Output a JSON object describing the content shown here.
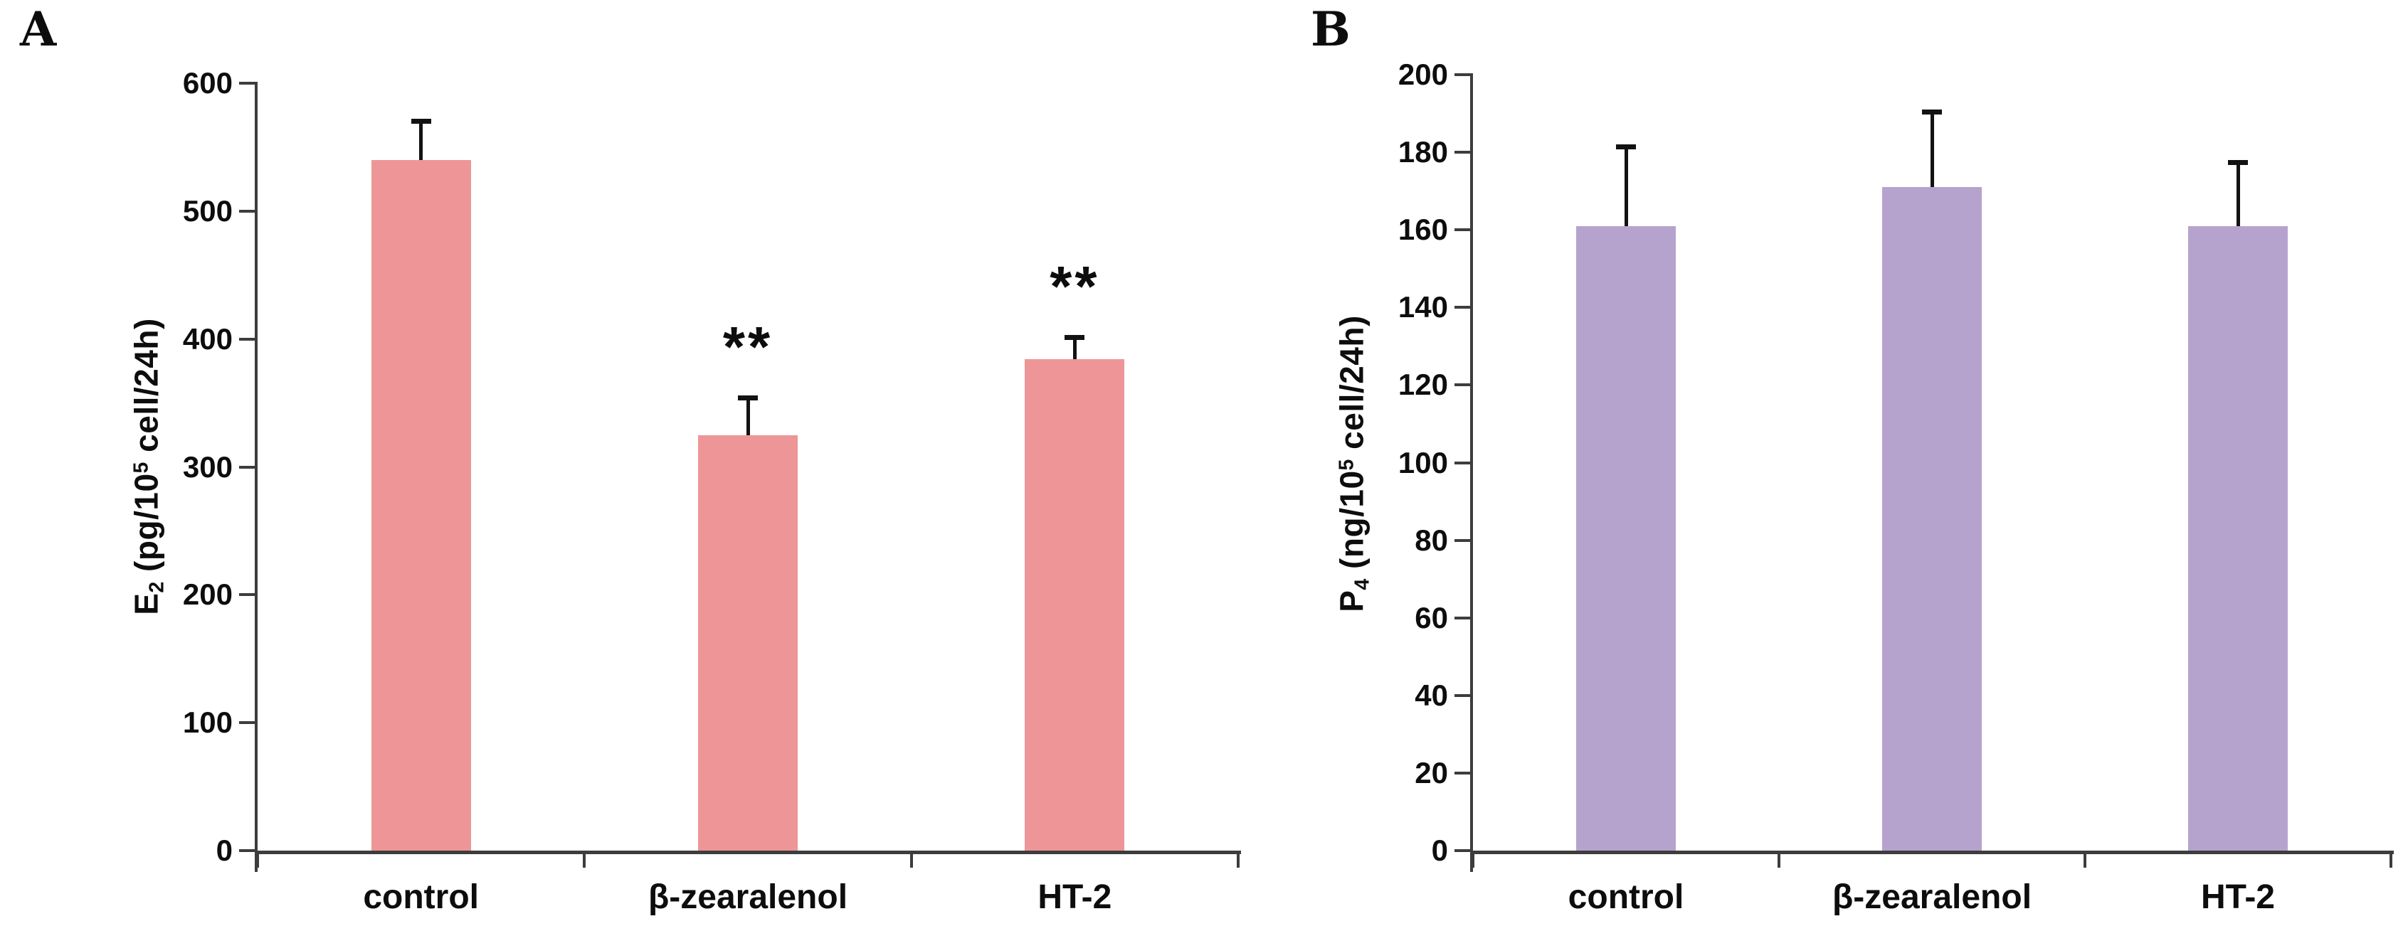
{
  "chart_data": [
    {
      "type": "bar",
      "panel_label": "A",
      "title": "",
      "categories": [
        "control",
        "β-zearalenol",
        "HT-2"
      ],
      "values": [
        540,
        325,
        384
      ],
      "errors": [
        32,
        31,
        19
      ],
      "significance": [
        "",
        "**",
        "**"
      ],
      "ylabel": "E2 (pg/10^5 cell/24h)",
      "ylabel_parts": {
        "pre": "E",
        "sub": "2",
        "mid": " (pg/10",
        "sup": "5",
        "post": " cell/24h)"
      },
      "xlabel": "",
      "ylim": [
        0,
        600
      ],
      "ytick_step": 100,
      "ytick_labels": [
        "0",
        "100",
        "200",
        "300",
        "400",
        "500",
        "600"
      ],
      "grid": false,
      "legend_position": "none",
      "bar_color": "#EE9697",
      "error_color": "#121212",
      "axis_color": "#3d3d3d"
    },
    {
      "type": "bar",
      "panel_label": "B",
      "title": "",
      "categories": [
        "control",
        "β-zearalenol",
        "HT-2"
      ],
      "values": [
        161,
        171,
        161
      ],
      "errors": [
        21,
        20,
        17
      ],
      "significance": [
        "",
        "",
        ""
      ],
      "ylabel": "P4 (ng/10^5 cell/24h)",
      "ylabel_parts": {
        "pre": "P",
        "sub": "4",
        "mid": " (ng/10",
        "sup": "5",
        "post": " cell/24h)"
      },
      "xlabel": "",
      "ylim": [
        0,
        200
      ],
      "ytick_step": 20,
      "ytick_labels": [
        "0",
        "20",
        "40",
        "60",
        "80",
        "100",
        "120",
        "140",
        "160",
        "180",
        "200"
      ],
      "grid": false,
      "legend_position": "none",
      "bar_color": "#B6A3CD",
      "error_color": "#121212",
      "axis_color": "#3d3d3d"
    }
  ]
}
